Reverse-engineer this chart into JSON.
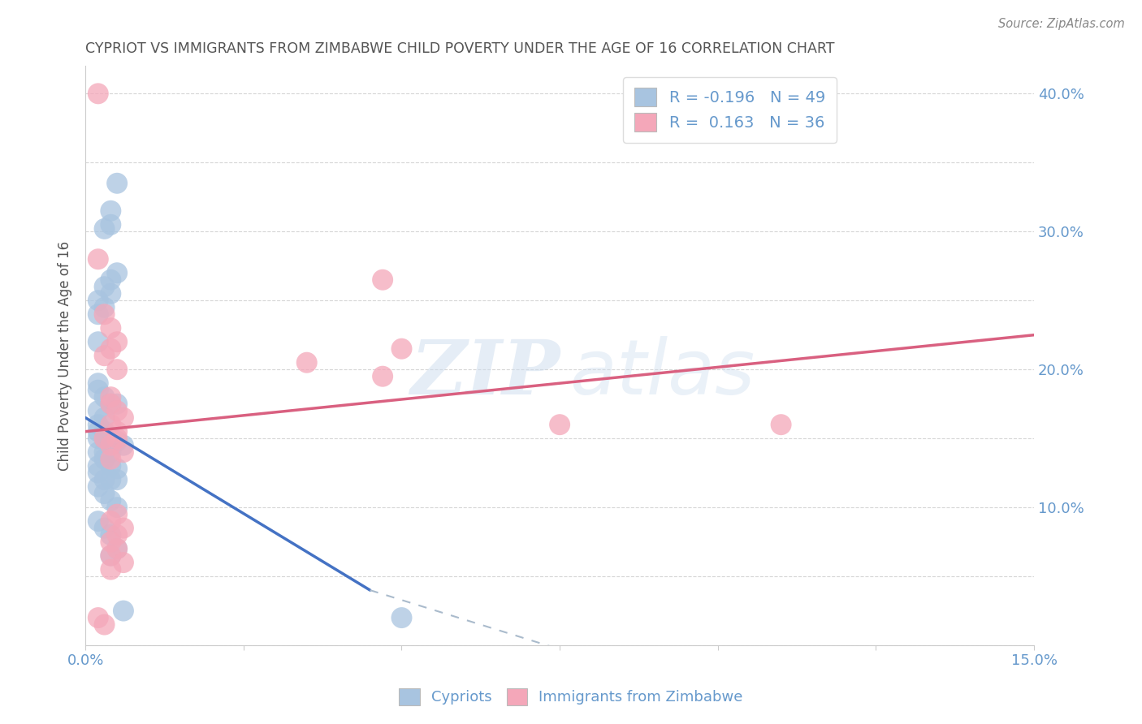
{
  "title": "CYPRIOT VS IMMIGRANTS FROM ZIMBABWE CHILD POVERTY UNDER THE AGE OF 16 CORRELATION CHART",
  "source": "Source: ZipAtlas.com",
  "ylabel": "Child Poverty Under the Age of 16",
  "xlim": [
    0.0,
    0.15
  ],
  "ylim": [
    0.0,
    0.42
  ],
  "xticks": [
    0.0,
    0.025,
    0.05,
    0.075,
    0.1,
    0.125,
    0.15
  ],
  "xticklabels": [
    "0.0%",
    "",
    "",
    "",
    "",
    "",
    "15.0%"
  ],
  "yticks": [
    0.0,
    0.05,
    0.1,
    0.15,
    0.2,
    0.25,
    0.3,
    0.35,
    0.4
  ],
  "yticklabels": [
    "",
    "",
    "10.0%",
    "",
    "20.0%",
    "",
    "30.0%",
    "",
    "40.0%"
  ],
  "watermark_zip": "ZIP",
  "watermark_atlas": "atlas",
  "legend_cypriot_R": "-0.196",
  "legend_cypriot_N": "49",
  "legend_zimbabwe_R": "0.163",
  "legend_zimbabwe_N": "36",
  "color_cypriot": "#a8c4e0",
  "color_zimbabwe": "#f4a7b9",
  "line_color_cypriot": "#4472c4",
  "line_color_zimbabwe": "#d96080",
  "title_color": "#555555",
  "axis_color": "#6699cc",
  "cypriot_scatter": [
    [
      0.005,
      0.335
    ],
    [
      0.004,
      0.315
    ],
    [
      0.004,
      0.305
    ],
    [
      0.003,
      0.302
    ],
    [
      0.005,
      0.27
    ],
    [
      0.004,
      0.265
    ],
    [
      0.003,
      0.26
    ],
    [
      0.004,
      0.255
    ],
    [
      0.002,
      0.25
    ],
    [
      0.003,
      0.245
    ],
    [
      0.002,
      0.24
    ],
    [
      0.002,
      0.22
    ],
    [
      0.002,
      0.19
    ],
    [
      0.002,
      0.185
    ],
    [
      0.003,
      0.18
    ],
    [
      0.004,
      0.175
    ],
    [
      0.005,
      0.175
    ],
    [
      0.002,
      0.17
    ],
    [
      0.003,
      0.165
    ],
    [
      0.002,
      0.16
    ],
    [
      0.003,
      0.155
    ],
    [
      0.002,
      0.155
    ],
    [
      0.002,
      0.15
    ],
    [
      0.003,
      0.15
    ],
    [
      0.004,
      0.15
    ],
    [
      0.005,
      0.148
    ],
    [
      0.006,
      0.145
    ],
    [
      0.002,
      0.14
    ],
    [
      0.003,
      0.14
    ],
    [
      0.004,
      0.14
    ],
    [
      0.003,
      0.135
    ],
    [
      0.002,
      0.13
    ],
    [
      0.004,
      0.13
    ],
    [
      0.005,
      0.128
    ],
    [
      0.002,
      0.125
    ],
    [
      0.003,
      0.12
    ],
    [
      0.004,
      0.12
    ],
    [
      0.005,
      0.12
    ],
    [
      0.002,
      0.115
    ],
    [
      0.003,
      0.11
    ],
    [
      0.004,
      0.105
    ],
    [
      0.005,
      0.1
    ],
    [
      0.002,
      0.09
    ],
    [
      0.003,
      0.085
    ],
    [
      0.004,
      0.08
    ],
    [
      0.005,
      0.07
    ],
    [
      0.004,
      0.065
    ],
    [
      0.05,
      0.02
    ],
    [
      0.006,
      0.025
    ]
  ],
  "zimbabwe_scatter": [
    [
      0.002,
      0.4
    ],
    [
      0.002,
      0.28
    ],
    [
      0.003,
      0.24
    ],
    [
      0.004,
      0.23
    ],
    [
      0.005,
      0.22
    ],
    [
      0.004,
      0.215
    ],
    [
      0.003,
      0.21
    ],
    [
      0.005,
      0.2
    ],
    [
      0.047,
      0.265
    ],
    [
      0.035,
      0.205
    ],
    [
      0.047,
      0.195
    ],
    [
      0.004,
      0.18
    ],
    [
      0.004,
      0.175
    ],
    [
      0.005,
      0.17
    ],
    [
      0.006,
      0.165
    ],
    [
      0.004,
      0.16
    ],
    [
      0.005,
      0.155
    ],
    [
      0.003,
      0.15
    ],
    [
      0.005,
      0.15
    ],
    [
      0.004,
      0.145
    ],
    [
      0.006,
      0.14
    ],
    [
      0.004,
      0.135
    ],
    [
      0.005,
      0.095
    ],
    [
      0.004,
      0.09
    ],
    [
      0.006,
      0.085
    ],
    [
      0.005,
      0.08
    ],
    [
      0.004,
      0.075
    ],
    [
      0.005,
      0.07
    ],
    [
      0.004,
      0.065
    ],
    [
      0.006,
      0.06
    ],
    [
      0.004,
      0.055
    ],
    [
      0.075,
      0.16
    ],
    [
      0.11,
      0.16
    ],
    [
      0.05,
      0.215
    ],
    [
      0.002,
      0.02
    ],
    [
      0.003,
      0.015
    ]
  ],
  "cypriot_trendline_solid": [
    [
      0.0,
      0.165
    ],
    [
      0.045,
      0.04
    ]
  ],
  "cypriot_trendline_dashed": [
    [
      0.045,
      0.04
    ],
    [
      0.15,
      -0.11
    ]
  ],
  "zimbabwe_trendline": [
    [
      0.0,
      0.155
    ],
    [
      0.15,
      0.225
    ]
  ]
}
